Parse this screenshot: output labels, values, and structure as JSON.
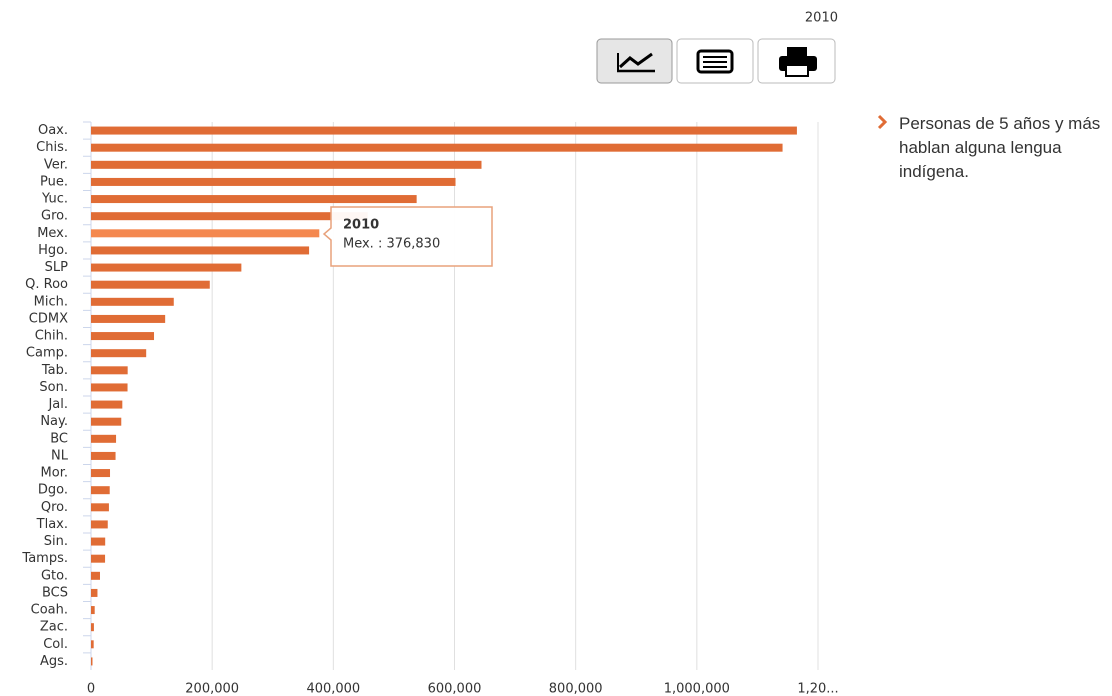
{
  "chart_data": {
    "type": "bar",
    "orientation": "horizontal",
    "year_label": "2010",
    "categories": [
      "Oax.",
      "Chis.",
      "Ver.",
      "Pue.",
      "Yuc.",
      "Gro.",
      "Mex.",
      "Hgo.",
      "SLP",
      "Q. Roo",
      "Mich.",
      "CDMX",
      "Chih.",
      "Camp.",
      "Tab.",
      "Son.",
      "Jal.",
      "Nay.",
      "BC",
      "NL",
      "Mor.",
      "Dgo.",
      "Qro.",
      "Tlax.",
      "Sin.",
      "Tamps.",
      "Gto.",
      "BCS",
      "Coah.",
      "Zac.",
      "Col.",
      "Ags."
    ],
    "series": [
      {
        "name": "Personas de 5 años y más hablan alguna lengua indígena.",
        "color": "#e06c35",
        "values": [
          1165186,
          1141499,
          644559,
          601680,
          537516,
          456774,
          376830,
          359972,
          248196,
          196060,
          136608,
          122411,
          104014,
          91094,
          60526,
          60310,
          51702,
          49963,
          41359,
          40528,
          31388,
          30894,
          29585,
          27653,
          23426,
          23208,
          14835,
          10661,
          6105,
          4806,
          4404,
          2436
        ]
      }
    ],
    "highlight_color": "#f4884f",
    "xlim": [
      0,
      1200000
    ],
    "xticks": [
      0,
      {
        "value": 200000,
        "label": "200,000"
      },
      {
        "value": 400000,
        "label": "400,000"
      },
      {
        "value": 600000,
        "label": "600,000"
      },
      {
        "value": 800000,
        "label": "800,000"
      },
      {
        "value": 1000000,
        "label": "1,000,000"
      },
      {
        "value": 1200000,
        "label": "1,20..."
      }
    ],
    "grid": true,
    "tooltip": {
      "title": "2010",
      "text": "Mex. : 376,830"
    }
  }
}
